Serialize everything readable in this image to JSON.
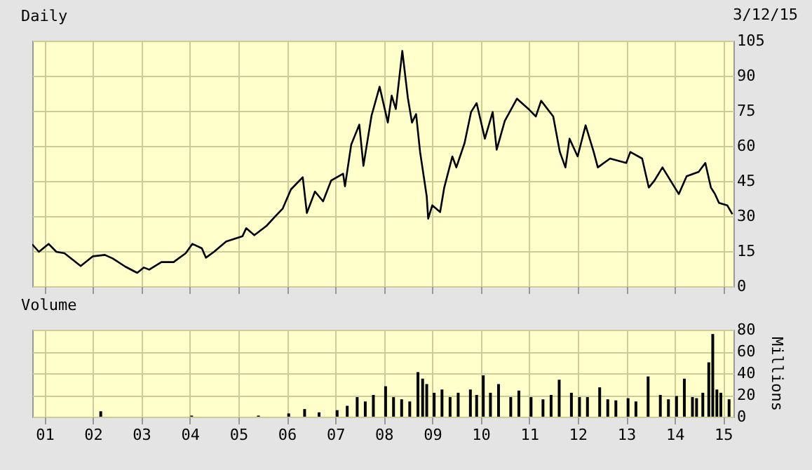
{
  "chart_data": [
    {
      "type": "line",
      "title": "Daily",
      "annotations": [
        "3/12/15"
      ],
      "x": [
        "2000-10-01",
        "2000-11-20",
        "2001-02-01",
        "2001-04-01",
        "2001-06-01",
        "2001-10-01",
        "2002-01-01",
        "2002-04-01",
        "2002-06-01",
        "2002-09-01",
        "2002-12-01",
        "2003-01-20",
        "2003-03-01",
        "2003-06-01",
        "2003-09-01",
        "2003-12-01",
        "2004-01-20",
        "2004-04-01",
        "2004-05-01",
        "2004-07-01",
        "2004-10-01",
        "2005-02-01",
        "2005-03-01",
        "2005-05-01",
        "2005-08-01",
        "2005-10-01",
        "2005-12-01",
        "2006-02-01",
        "2006-05-01",
        "2006-06-01",
        "2006-08-01",
        "2006-10-01",
        "2006-12-01",
        "2007-03-01",
        "2007-03-15",
        "2007-05-01",
        "2007-07-01",
        "2007-08-01",
        "2007-10-01",
        "2007-12-01",
        "2008-02-01",
        "2008-03-01",
        "2008-04-01",
        "2008-05-20",
        "2008-07-01",
        "2008-08-01",
        "2008-09-01",
        "2008-10-01",
        "2008-11-20",
        "2008-12-01",
        "2009-01-01",
        "2009-03-01",
        "2009-04-01",
        "2009-06-01",
        "2009-07-01",
        "2009-09-01",
        "2009-10-20",
        "2009-12-01",
        "2010-02-01",
        "2010-04-01",
        "2010-05-01",
        "2010-07-01",
        "2010-10-01",
        "2011-01-01",
        "2011-02-20",
        "2011-04-01",
        "2011-07-01",
        "2011-08-20",
        "2011-10-01",
        "2011-11-01",
        "2012-01-01",
        "2012-03-01",
        "2012-05-01",
        "2012-06-01",
        "2012-09-01",
        "2013-01-01",
        "2013-02-01",
        "2013-05-01",
        "2013-06-20",
        "2013-08-01",
        "2013-10-01",
        "2014-02-01",
        "2014-04-01",
        "2014-07-01",
        "2014-08-20",
        "2014-10-01",
        "2014-11-01",
        "2014-12-01",
        "2015-02-01",
        "2015-03-12"
      ],
      "series": [
        {
          "color": "#000000",
          "values": [
            17.9,
            14.7,
            18.1,
            14.7,
            14.1,
            8.6,
            12.8,
            13.4,
            11.8,
            8.4,
            5.7,
            8.0,
            7.1,
            10.3,
            10.3,
            14.1,
            18.1,
            16.2,
            12.2,
            14.7,
            19.1,
            21.4,
            24.8,
            21.8,
            25.8,
            29.6,
            33.2,
            41.4,
            46.6,
            31.3,
            40.5,
            36.3,
            45.2,
            48.1,
            42.7,
            60.5,
            69.1,
            51.5,
            72.9,
            85.3,
            70.0,
            81.5,
            75.8,
            100.6,
            80.5,
            70.0,
            73.6,
            57.4,
            38.4,
            28.9,
            34.6,
            31.7,
            42.2,
            55.5,
            50.8,
            61.2,
            74.5,
            78.3,
            63.1,
            74.5,
            58.4,
            70.7,
            80.2,
            75.5,
            72.6,
            79.3,
            72.6,
            57.4,
            50.8,
            63.1,
            55.5,
            68.8,
            57.4,
            50.8,
            54.6,
            52.7,
            57.4,
            54.6,
            42.2,
            45.1,
            50.8,
            39.4,
            47.0,
            48.9,
            52.7,
            42.2,
            39.4,
            35.6,
            34.6,
            30.8
          ]
        }
      ],
      "xlim": [
        "2000-10-01",
        "2015-03-20"
      ],
      "xticks": [
        {
          "value": "2001",
          "label": null
        },
        {
          "value": "2002",
          "label": null
        },
        {
          "value": "2003",
          "label": null
        },
        {
          "value": "2004",
          "label": null
        },
        {
          "value": "2005",
          "label": null
        },
        {
          "value": "2006",
          "label": null
        },
        {
          "value": "2007",
          "label": null
        },
        {
          "value": "2008",
          "label": null
        },
        {
          "value": "2009",
          "label": null
        },
        {
          "value": "2010",
          "label": null
        },
        {
          "value": "2011",
          "label": null
        },
        {
          "value": "2012",
          "label": null
        },
        {
          "value": "2013",
          "label": null
        },
        {
          "value": "2014",
          "label": null
        },
        {
          "value": "2015",
          "label": null
        }
      ],
      "ylim": [
        0,
        105
      ],
      "yticks": [
        0,
        15,
        30,
        45,
        60,
        75,
        90,
        105
      ],
      "grid": true,
      "tick_labels": "y"
    },
    {
      "type": "bar",
      "title": "Volume",
      "ylabel": "Millions",
      "x": [
        "2002-03-01",
        "2004-01-15",
        "2005-06-01",
        "2006-01-15",
        "2006-05-15",
        "2006-09-01",
        "2007-01-15",
        "2007-04-01",
        "2007-06-15",
        "2007-08-15",
        "2007-10-15",
        "2008-01-15",
        "2008-03-15",
        "2008-05-15",
        "2008-07-15",
        "2008-09-15",
        "2008-10-20",
        "2008-11-20",
        "2009-01-15",
        "2009-03-15",
        "2009-05-15",
        "2009-07-15",
        "2009-10-15",
        "2009-12-01",
        "2010-01-20",
        "2010-03-15",
        "2010-05-15",
        "2010-08-15",
        "2010-10-15",
        "2011-01-15",
        "2011-04-15",
        "2011-06-15",
        "2011-08-15",
        "2011-11-15",
        "2012-01-15",
        "2012-03-15",
        "2012-06-15",
        "2012-08-15",
        "2012-10-15",
        "2013-01-15",
        "2013-03-15",
        "2013-06-15",
        "2013-09-15",
        "2013-11-15",
        "2014-01-15",
        "2014-03-15",
        "2014-05-15",
        "2014-06-15",
        "2014-08-01",
        "2014-09-15",
        "2014-10-15",
        "2014-11-15",
        "2014-12-15",
        "2015-02-15"
      ],
      "series": [
        {
          "color": "#000000",
          "values": [
            5,
            1,
            1,
            3,
            7,
            4,
            6,
            10,
            18,
            14,
            20,
            28,
            18,
            16,
            14,
            41,
            35,
            30,
            22,
            25,
            18,
            22,
            25,
            20,
            38,
            22,
            30,
            18,
            24,
            18,
            16,
            20,
            34,
            22,
            18,
            18,
            27,
            16,
            15,
            17,
            14,
            37,
            20,
            16,
            19,
            35,
            18,
            17,
            22,
            50,
            76,
            25,
            22,
            16
          ]
        }
      ],
      "xlim": [
        "2000-10-01",
        "2015-03-20"
      ],
      "xticks": [
        {
          "value": "2001",
          "label": "01"
        },
        {
          "value": "2002",
          "label": "02"
        },
        {
          "value": "2003",
          "label": "03"
        },
        {
          "value": "2004",
          "label": "04"
        },
        {
          "value": "2005",
          "label": "05"
        },
        {
          "value": "2006",
          "label": "06"
        },
        {
          "value": "2007",
          "label": "07"
        },
        {
          "value": "2008",
          "label": "08"
        },
        {
          "value": "2009",
          "label": "09"
        },
        {
          "value": "2010",
          "label": "10"
        },
        {
          "value": "2011",
          "label": "11"
        },
        {
          "value": "2012",
          "label": "12"
        },
        {
          "value": "2013",
          "label": "13"
        },
        {
          "value": "2014",
          "label": "14"
        },
        {
          "value": "2015",
          "label": "15"
        }
      ],
      "ylim": [
        0,
        80
      ],
      "yticks": [
        0,
        20,
        40,
        60,
        80
      ],
      "grid": true
    }
  ]
}
